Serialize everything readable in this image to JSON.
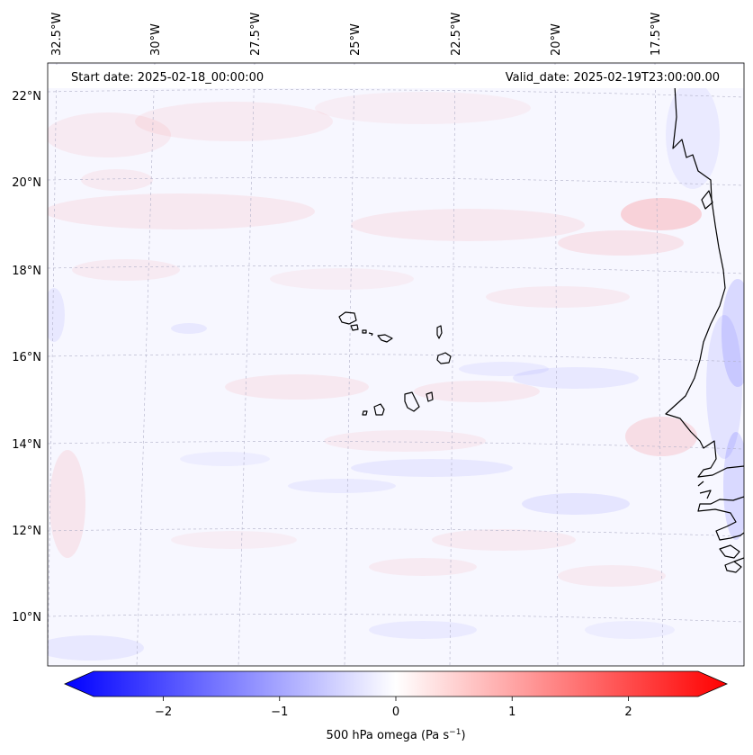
{
  "map": {
    "start_date": "Start date: 2025-02-18_00:00:00",
    "valid_date": "Valid_date: 2025-02-19T23:00:00.00",
    "lon_labels": [
      "32.5°W",
      "30°W",
      "27.5°W",
      "25°W",
      "22.5°W",
      "20°W",
      "17.5°W"
    ],
    "lat_labels": [
      "22°N",
      "20°N",
      "18°N",
      "16°N",
      "14°N",
      "12°N",
      "10°N"
    ],
    "field_colors": {
      "rise": "#ff0000",
      "sink": "#0000ff",
      "neutral": "#ffffff"
    }
  },
  "colorbar": {
    "label": "500 hPa omega (Pa s",
    "label_exponent": "−1",
    "label_close": ")",
    "range": [
      -2.6,
      2.6
    ],
    "ticks": [
      {
        "value": -2,
        "text": "−2"
      },
      {
        "value": -1,
        "text": "−1"
      },
      {
        "value": 0,
        "text": "0"
      },
      {
        "value": 1,
        "text": "1"
      },
      {
        "value": 2,
        "text": "2"
      }
    ]
  }
}
